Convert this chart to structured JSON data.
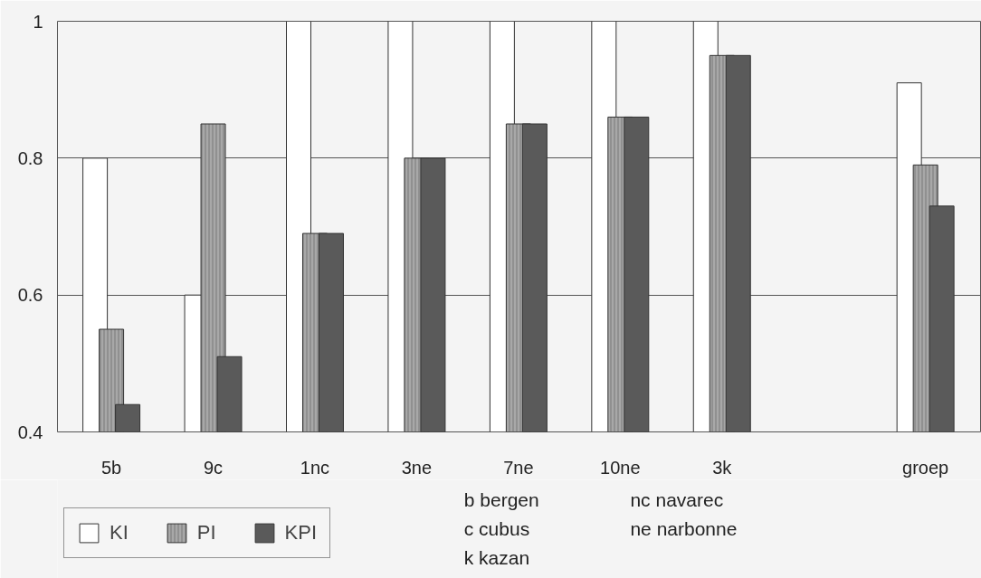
{
  "chart_data": {
    "type": "bar",
    "categories": [
      "5b",
      "9c",
      "1nc",
      "3ne",
      "7ne",
      "10ne",
      "3k",
      null,
      "groep"
    ],
    "series": [
      {
        "name": "KI",
        "color": "#ffffff",
        "values": [
          0.8,
          0.6,
          1.0,
          1.0,
          1.0,
          1.0,
          1.0,
          null,
          0.91
        ]
      },
      {
        "name": "PI",
        "color": "#a8a8a8",
        "values": [
          0.55,
          0.85,
          0.69,
          0.8,
          0.85,
          0.86,
          0.95,
          null,
          0.79
        ]
      },
      {
        "name": "KPI",
        "color": "#5a5a5a",
        "values": [
          0.44,
          0.51,
          0.69,
          0.8,
          0.85,
          0.86,
          0.95,
          null,
          0.73
        ]
      }
    ],
    "ylim": [
      0.4,
      1
    ],
    "yticks": [
      0.4,
      0.6,
      0.8,
      1
    ],
    "grid": "y",
    "legend": "bottom left",
    "annotations": [
      "b  bergen",
      "c  cubus",
      "k  kazan",
      "nc  navarec",
      "ne  narbonne"
    ]
  }
}
